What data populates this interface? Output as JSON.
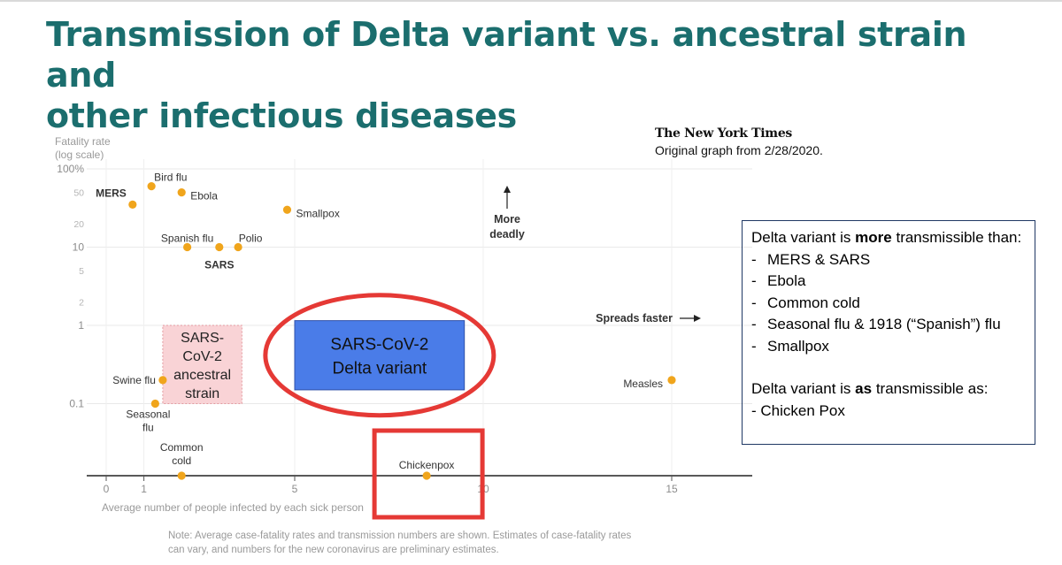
{
  "title": {
    "line1": "Transmission of Delta variant vs. ancestral strain and",
    "line2": "other infectious diseases"
  },
  "source": {
    "logo_text": "The New York Times",
    "caption": "Original graph from 2/28/2020."
  },
  "chart_data": {
    "type": "scatter",
    "title": "",
    "ylabel": "Fatality rate",
    "ylabel_sub": "(log scale)",
    "xlabel": "Average number of people infected by each sick person",
    "yscale": "log",
    "xlim": [
      -1,
      17
    ],
    "ylim_label": [
      0.1,
      100
    ],
    "x_ticks": [
      {
        "value": 0,
        "label": "0"
      },
      {
        "value": 1,
        "label": "1"
      },
      {
        "value": 5,
        "label": "5"
      },
      {
        "value": 10,
        "label": "10"
      },
      {
        "value": 15,
        "label": "15"
      }
    ],
    "y_ticks": [
      {
        "value": 100,
        "label": "100%"
      },
      {
        "value": 50,
        "label": "50"
      },
      {
        "value": 20,
        "label": "20"
      },
      {
        "value": 10,
        "label": "10"
      },
      {
        "value": 5,
        "label": "5"
      },
      {
        "value": 2,
        "label": "2"
      },
      {
        "value": 1,
        "label": "1"
      },
      {
        "value": 0.1,
        "label": "0.1"
      }
    ],
    "grid": true,
    "point_color": "#f0a51c",
    "points": [
      {
        "name": "MERS",
        "x": 0.7,
        "y": 35,
        "bold": true
      },
      {
        "name": "Bird flu",
        "x": 1.2,
        "y": 60,
        "bold": false
      },
      {
        "name": "Ebola",
        "x": 2.0,
        "y": 50,
        "bold": false
      },
      {
        "name": "Smallpox",
        "x": 4.8,
        "y": 30,
        "bold": false
      },
      {
        "name": "Spanish flu",
        "x": 2.15,
        "y": 10,
        "bold": false
      },
      {
        "name": "SARS",
        "x": 3.0,
        "y": 10,
        "bold": true
      },
      {
        "name": "Polio",
        "x": 3.5,
        "y": 10,
        "bold": false
      },
      {
        "name": "Swine flu",
        "x": 1.5,
        "y": 0.2,
        "bold": false
      },
      {
        "name": "Seasonal flu",
        "x": 1.3,
        "y": 0.1,
        "bold": false
      },
      {
        "name": "Common cold",
        "x": 2.0,
        "y": 0.005,
        "bold": false
      },
      {
        "name": "Chickenpox",
        "x": 8.5,
        "y": 0.005,
        "bold": false
      },
      {
        "name": "Measles",
        "x": 15.0,
        "y": 0.2,
        "bold": false
      }
    ],
    "annotations": {
      "more_deadly_line1": "More",
      "more_deadly_line2": "deadly",
      "spreads_faster": "Spreads faster"
    },
    "highlights": [
      {
        "name": "SARS-CoV-2 ancestral strain",
        "lines": [
          "SARS-",
          "CoV-2",
          "ancestral",
          "strain"
        ],
        "x_range": [
          1.5,
          3.6
        ],
        "y_range": [
          0.1,
          1.0
        ],
        "style": "pink-dashed"
      },
      {
        "name": "SARS-CoV-2 Delta variant",
        "lines": [
          "SARS-CoV-2",
          "Delta variant"
        ],
        "x_range": [
          5.0,
          9.5
        ],
        "y_range": [
          0.15,
          1.15
        ],
        "style": "blue-filled",
        "color": "#4a7ce8"
      }
    ],
    "overlay_marks": {
      "ellipse_color": "#e53935",
      "rect_color": "#e53935"
    }
  },
  "callout": {
    "intro_pre": "Delta variant is ",
    "intro_bold": "more",
    "intro_post": " transmissible than:",
    "items": [
      "MERS & SARS",
      "Ebola",
      "Common cold",
      "Seasonal flu & 1918 (“Spanish”) flu",
      "Smallpox"
    ],
    "second_pre": "Delta variant is ",
    "second_bold": "as",
    "second_post": " transmissible as:",
    "second_item": "- Chicken Pox"
  },
  "note": {
    "line1": "Note: Average case-fatality rates and transmission numbers are shown. Estimates of case-fatality rates",
    "line2": "can vary, and numbers for the new coronavirus are preliminary estimates."
  }
}
